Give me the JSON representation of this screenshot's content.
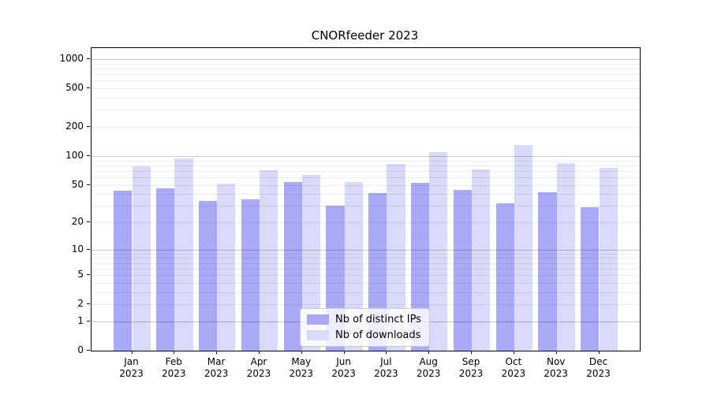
{
  "chart_data": {
    "type": "bar",
    "title": "CNORfeeder 2023",
    "categories": [
      "Jan",
      "Feb",
      "Mar",
      "Apr",
      "May",
      "Jun",
      "Jul",
      "Aug",
      "Sep",
      "Oct",
      "Nov",
      "Dec"
    ],
    "year": "2023",
    "series": [
      {
        "name": "Nb of distinct IPs",
        "color": "#a9a9f7",
        "values": [
          43,
          46,
          34,
          35,
          53,
          30,
          41,
          52,
          44,
          32,
          42,
          29
        ]
      },
      {
        "name": "Nb of downloads",
        "color": "#d9d9f9",
        "values": [
          78,
          94,
          51,
          71,
          64,
          53,
          83,
          110,
          73,
          130,
          84,
          75
        ]
      }
    ],
    "y_scale": "log1p",
    "y_ticks": [
      1000,
      500,
      200,
      100,
      50,
      20,
      10,
      5,
      2,
      1,
      0
    ],
    "ylim": [
      0,
      1300
    ],
    "grid": true,
    "grid_major_at": [
      1,
      10,
      100,
      1000
    ],
    "legend_position": "lower center",
    "xlabel": "",
    "ylabel": ""
  }
}
